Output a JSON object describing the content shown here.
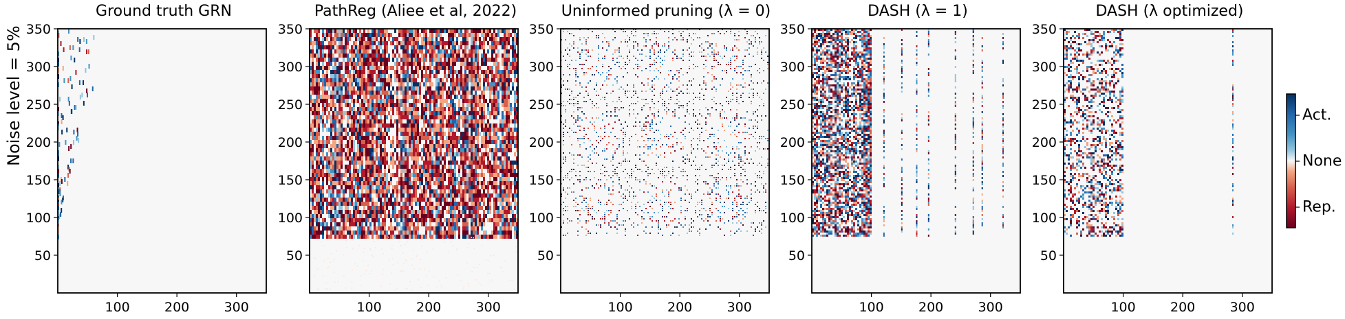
{
  "figure": {
    "row_label": "Noise level = 5%"
  },
  "colorbar": {
    "labels": [
      "Act.",
      "None",
      "Rep."
    ],
    "colors": {
      "activation": "#053061",
      "none": "#f7f7f7",
      "repression": "#67001f"
    }
  },
  "chart_data": [
    {
      "type": "heatmap",
      "title": "Ground truth GRN",
      "xlim": [
        0,
        350
      ],
      "ylim": [
        0,
        350
      ],
      "xticks": [
        100,
        200,
        300
      ],
      "yticks": [
        50,
        100,
        150,
        200,
        250,
        300,
        350
      ],
      "xticklabels": [
        "100",
        "200",
        "300"
      ],
      "yticklabels": [
        "50",
        "100",
        "150",
        "200",
        "250",
        "300",
        "350"
      ],
      "active_region": {
        "x": [
          0,
          100
        ],
        "y": [
          75,
          350
        ]
      },
      "pattern": "sparse diagonal band of nonzero entries",
      "density": 0.03
    },
    {
      "type": "heatmap",
      "title": "PathReg (Aliee et al, 2022)",
      "xlim": [
        0,
        350
      ],
      "ylim": [
        0,
        350
      ],
      "xticks": [
        100,
        200,
        300
      ],
      "yticks": [
        50,
        100,
        150,
        200,
        250,
        300,
        350
      ],
      "xticklabels": [
        "100",
        "200",
        "300"
      ],
      "yticklabels": [
        "50",
        "100",
        "150",
        "200",
        "250",
        "300",
        "350"
      ],
      "active_region": {
        "x": [
          0,
          350
        ],
        "y": [
          75,
          350
        ]
      },
      "pattern": "dense; mostly repression",
      "density": 0.95
    },
    {
      "type": "heatmap",
      "title": "Uninformed pruning (λ = 0)",
      "xlim": [
        0,
        350
      ],
      "ylim": [
        0,
        350
      ],
      "xticks": [
        100,
        200,
        300
      ],
      "yticks": [
        50,
        100,
        150,
        200,
        250,
        300,
        350
      ],
      "xticklabels": [
        "100",
        "200",
        "300"
      ],
      "yticklabels": [
        "50",
        "100",
        "150",
        "200",
        "250",
        "300",
        "350"
      ],
      "active_region": {
        "x": [
          0,
          350
        ],
        "y": [
          75,
          350
        ]
      },
      "pattern": "scattered mixed activation/repression",
      "density": 0.35
    },
    {
      "type": "heatmap",
      "title": "DASH (λ = 1)",
      "xlim": [
        0,
        350
      ],
      "ylim": [
        0,
        350
      ],
      "xticks": [
        100,
        200,
        300
      ],
      "yticks": [
        50,
        100,
        150,
        200,
        250,
        300,
        350
      ],
      "xticklabels": [
        "100",
        "200",
        "300"
      ],
      "yticklabels": [
        "50",
        "100",
        "150",
        "200",
        "250",
        "300",
        "350"
      ],
      "active_region": {
        "x": [
          0,
          100
        ],
        "y": [
          75,
          350
        ]
      },
      "extra_columns": [
        120,
        150,
        175,
        195,
        240,
        270,
        285,
        320
      ],
      "pattern": "dense block in first 100 columns plus sparse columns",
      "density": 0.8
    },
    {
      "type": "heatmap",
      "title": "DASH (λ optimized)",
      "xlim": [
        0,
        350
      ],
      "ylim": [
        0,
        350
      ],
      "xticks": [
        100,
        200,
        300
      ],
      "yticks": [
        50,
        100,
        150,
        200,
        250,
        300,
        350
      ],
      "xticklabels": [
        "100",
        "200",
        "300"
      ],
      "yticklabels": [
        "50",
        "100",
        "150",
        "200",
        "250",
        "300",
        "350"
      ],
      "active_region": {
        "x": [
          0,
          100
        ],
        "y": [
          75,
          350
        ]
      },
      "extra_columns": [
        283
      ],
      "pattern": "moderate block in first 100 columns, near-empty elsewhere",
      "density": 0.45
    }
  ]
}
